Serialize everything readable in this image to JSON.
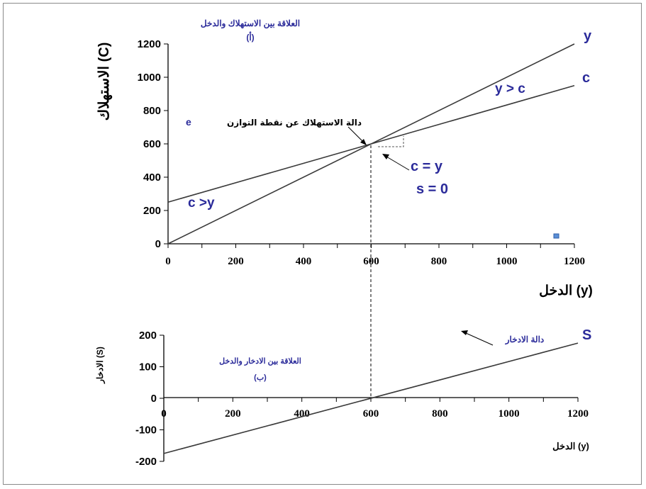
{
  "chart_data": [
    {
      "type": "line",
      "title": "العلاقة بين الاستهلاك والدخل",
      "subtitle": "(أ)",
      "xlabel": "الدخل (y)",
      "ylabel": "الاستهلاك (C)",
      "xlim": [
        0,
        1200
      ],
      "ylim": [
        0,
        1200
      ],
      "x_ticks": [
        "0",
        "200",
        "400",
        "600",
        "800",
        "1000",
        "1200"
      ],
      "y_ticks": [
        "0",
        "200",
        "400",
        "600",
        "800",
        "1000",
        "1200"
      ],
      "grid": false,
      "series": [
        {
          "name": "y",
          "x": [
            0,
            1200
          ],
          "values": [
            0,
            1200
          ]
        },
        {
          "name": "c",
          "x": [
            0,
            1200
          ],
          "values": [
            250,
            950
          ]
        }
      ],
      "annotations": {
        "equilibrium_label": "دالة الاستهلاك عن نقطة التوازن",
        "equilibrium_point_label": "e",
        "equilibrium_point": [
          600,
          600
        ],
        "y_gt_c": "y > c",
        "c_gt_y": "c >y",
        "c_eq_y": "c  = y",
        "s_eq_0": "s = 0",
        "series_label_y": "y",
        "series_label_c": "c"
      },
      "colors": {
        "line": "#3a3a3a",
        "annotation": "#2b2b9a",
        "marker": "#5b8fd6"
      }
    },
    {
      "type": "line",
      "title": "العلاقة بين الادخار والدخل",
      "subtitle": "(ب)",
      "xlabel": "الدخل (y)",
      "ylabel": "الادخار (S)",
      "xlim": [
        0,
        1200
      ],
      "ylim": [
        -200,
        200
      ],
      "x_ticks": [
        "0",
        "200",
        "400",
        "600",
        "800",
        "1000",
        "1200"
      ],
      "y_ticks": [
        "200",
        "100",
        "0",
        "-100",
        "-200"
      ],
      "grid": false,
      "series": [
        {
          "name": "S",
          "x": [
            0,
            1200
          ],
          "values": [
            -175,
            175
          ]
        }
      ],
      "annotations": {
        "savings_function": "دالة الادخار",
        "series_label_s": "S"
      },
      "colors": {
        "line": "#3a3a3a"
      }
    }
  ]
}
